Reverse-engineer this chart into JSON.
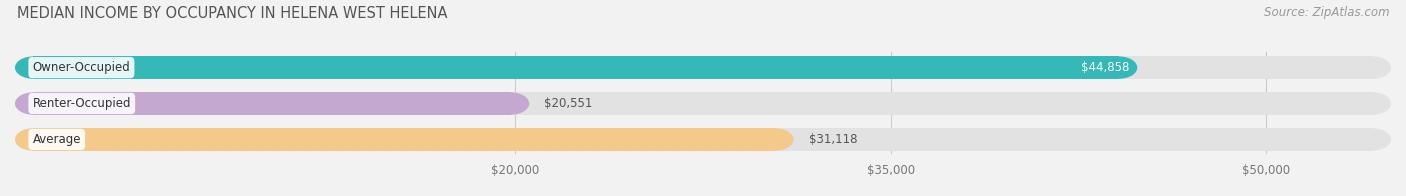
{
  "title": "MEDIAN INCOME BY OCCUPANCY IN HELENA WEST HELENA",
  "source": "Source: ZipAtlas.com",
  "categories": [
    "Owner-Occupied",
    "Renter-Occupied",
    "Average"
  ],
  "values": [
    44858,
    20551,
    31118
  ],
  "labels": [
    "$44,858",
    "$20,551",
    "$31,118"
  ],
  "bar_colors": [
    "#35b8b8",
    "#c4a8d0",
    "#f5c98a"
  ],
  "background_color": "#f2f2f2",
  "bar_bg_color": "#e2e2e2",
  "xlim_min": 0,
  "xlim_max": 55000,
  "xticks": [
    20000,
    35000,
    50000
  ],
  "xtick_labels": [
    "$20,000",
    "$35,000",
    "$50,000"
  ],
  "title_fontsize": 10.5,
  "source_fontsize": 8.5,
  "label_fontsize": 8.5,
  "tick_fontsize": 8.5,
  "cat_fontsize": 8.5,
  "bar_height": 0.62,
  "figsize": [
    14.06,
    1.96
  ],
  "dpi": 100
}
